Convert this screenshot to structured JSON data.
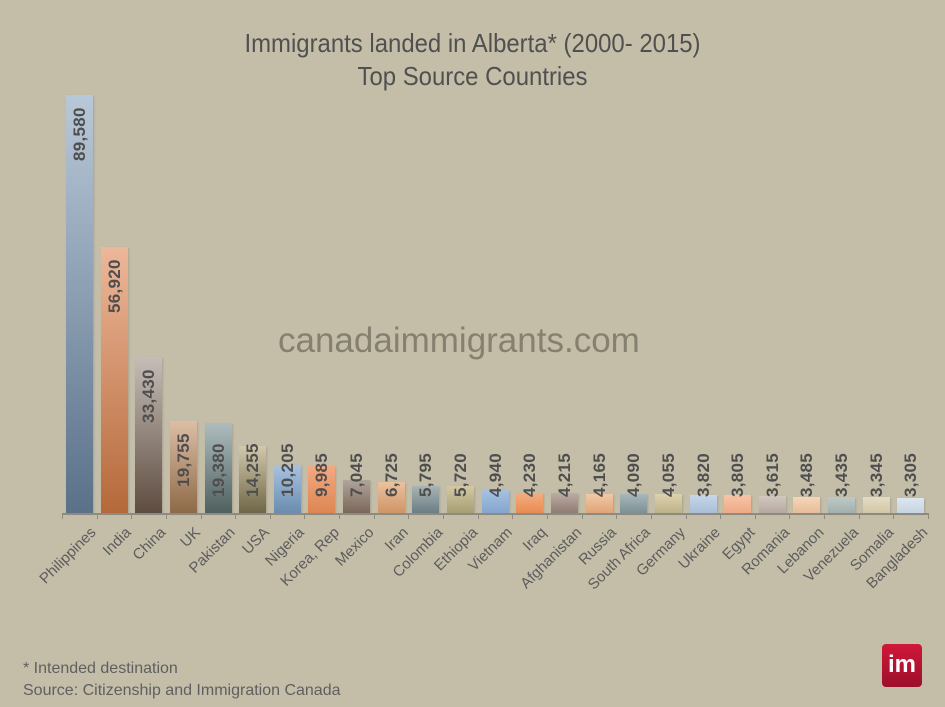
{
  "chart_data": {
    "type": "bar",
    "title": "Immigrants landed in Alberta* (2000- 2015)",
    "subtitle": "Top Source Countries",
    "xlabel": "",
    "ylabel": "",
    "ylim": [
      0,
      90000
    ],
    "grid": false,
    "legend": null,
    "categories": [
      "Philippines",
      "India",
      "China",
      "UK",
      "Pakistan",
      "USA",
      "Nigeria",
      "Korea, Rep",
      "Mexico",
      "Iran",
      "Colombia",
      "Ethiopia",
      "Vietnam",
      "Iraq",
      "Afghanistan",
      "Russia",
      "South Africa",
      "Germany",
      "Ukraine",
      "Egypt",
      "Romania",
      "Lebanon",
      "Venezuela",
      "Somalia",
      "Bangladesh"
    ],
    "values": [
      89580,
      56920,
      33430,
      19755,
      19380,
      14255,
      10205,
      9985,
      7045,
      6725,
      5795,
      5720,
      4940,
      4230,
      4215,
      4165,
      4090,
      4055,
      3820,
      3805,
      3615,
      3485,
      3435,
      3345,
      3305
    ],
    "value_labels": [
      "89,580",
      "56,920",
      "33,430",
      "19,755",
      "19,380",
      "14,255",
      "10,205",
      "9,985",
      "7,045",
      "6,725",
      "5,795",
      "5,720",
      "4,940",
      "4,230",
      "4,215",
      "4,165",
      "4,090",
      "4,055",
      "3,820",
      "3,805",
      "3,615",
      "3,485",
      "3,435",
      "3,345",
      "3,305"
    ],
    "bar_colors": [
      [
        "#b9c8d8",
        "#5a7189"
      ],
      [
        "#edb79a",
        "#b5693a"
      ],
      [
        "#c5bdb7",
        "#5e4c40"
      ],
      [
        "#ddbea6",
        "#8d6a47"
      ],
      [
        "#aebcbf",
        "#4f605f"
      ],
      [
        "#d2c8ac",
        "#6f6647"
      ],
      [
        "#a9c3df",
        "#6a8cb0"
      ],
      [
        "#f3a982",
        "#dd8653"
      ],
      [
        "#b1a49b",
        "#7a6759"
      ],
      [
        "#ebc29e",
        "#cf9566"
      ],
      [
        "#a8b4b6",
        "#6b7e83"
      ],
      [
        "#d3c9a3",
        "#a89e73"
      ],
      [
        "#a6c2e3",
        "#84a5cd"
      ],
      [
        "#f4ad80",
        "#e98b53"
      ],
      [
        "#bcaca4",
        "#8f7c72"
      ],
      [
        "#f2c9a4",
        "#e0a477"
      ],
      [
        "#a7b7bb",
        "#7c9094"
      ],
      [
        "#ddd3ad",
        "#bdb188"
      ],
      [
        "#c8d6e8",
        "#a8bed8"
      ],
      [
        "#f8c4a7",
        "#eeaa86"
      ],
      [
        "#d2c8c1",
        "#b5a89f"
      ],
      [
        "#f5d6b8",
        "#e8bc97"
      ],
      [
        "#bec9c7",
        "#a2b0ad"
      ],
      [
        "#e6dcc4",
        "#d2c6a6"
      ],
      [
        "#dde6f0",
        "#c6d4e3"
      ]
    ],
    "footnote": "* Intended destination",
    "source": "Source: Citizenship and Immigration Canada"
  },
  "header": {
    "title_line1": "Immigrants landed in Alberta* (2000- 2015)",
    "title_line2": "Top Source Countries"
  },
  "watermark": "canadaimmigrants.com",
  "footer": {
    "note": "* Intended destination",
    "source": "Source: Citizenship and Immigration Canada",
    "logo_text": "im",
    "logo_color": "#c4173a"
  }
}
